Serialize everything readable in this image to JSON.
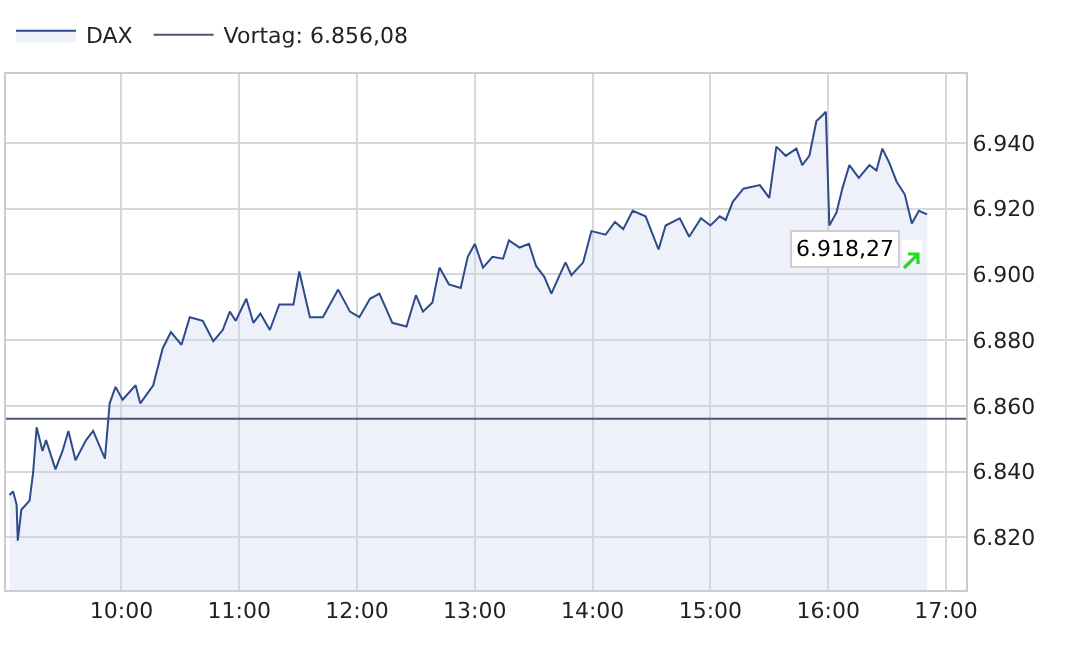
{
  "chart_data": {
    "type": "area",
    "x": [
      9.05,
      9.08,
      9.11,
      9.12,
      9.15,
      9.22,
      9.25,
      9.28,
      9.33,
      9.36,
      9.44,
      9.5,
      9.55,
      9.61,
      9.7,
      9.76,
      9.86,
      9.9,
      9.95,
      10.01,
      10.12,
      10.16,
      10.27,
      10.35,
      10.42,
      10.51,
      10.58,
      10.69,
      10.78,
      10.86,
      10.92,
      10.97,
      11.06,
      11.12,
      11.18,
      11.26,
      11.34,
      11.46,
      11.51,
      11.6,
      11.71,
      11.84,
      11.94,
      12.02,
      12.11,
      12.19,
      12.3,
      12.42,
      12.5,
      12.56,
      12.64,
      12.7,
      12.78,
      12.88,
      12.94,
      13.0,
      13.07,
      13.15,
      13.24,
      13.29,
      13.38,
      13.46,
      13.52,
      13.59,
      13.65,
      13.72,
      13.77,
      13.82,
      13.92,
      13.99,
      14.11,
      14.19,
      14.26,
      14.34,
      14.45,
      14.56,
      14.62,
      14.74,
      14.82,
      14.92,
      15.0,
      15.08,
      15.13,
      15.19,
      15.28,
      15.42,
      15.5,
      15.56,
      15.64,
      15.73,
      15.78,
      15.84,
      15.9,
      15.95,
      15.98,
      16.01,
      16.07,
      16.12,
      16.18,
      16.26,
      16.35,
      16.41,
      16.46,
      16.52,
      16.58,
      16.65,
      16.71,
      16.77,
      16.84
    ],
    "series": [
      {
        "name": "DAX",
        "color": "#2d4a8a",
        "values": [
          6832.9,
          6834,
          6830,
          6819,
          6828.4,
          6831.2,
          6839.6,
          6853.5,
          6846.3,
          6849.6,
          6840.7,
          6846.3,
          6852.4,
          6843.5,
          6849.6,
          6852.4,
          6844,
          6860.8,
          6865.8,
          6861.9,
          6866.3,
          6860.8,
          6866.3,
          6877.5,
          6882.5,
          6878.6,
          6887,
          6885.9,
          6879.7,
          6883.1,
          6888.7,
          6885.9,
          6892.6,
          6885.3,
          6888.1,
          6883.1,
          6890.9,
          6890.9,
          6900.9,
          6887,
          6887,
          6895.4,
          6888.7,
          6887,
          6892.6,
          6894.2,
          6885.3,
          6884.2,
          6893.7,
          6888.7,
          6891.5,
          6902.1,
          6897,
          6895.9,
          6905.4,
          6909.3,
          6902.1,
          6905.4,
          6904.8,
          6910.4,
          6908.2,
          6909.3,
          6902.6,
          6899.3,
          6894.2,
          6899.8,
          6903.7,
          6899.8,
          6903.7,
          6913.2,
          6912.1,
          6916,
          6913.8,
          6919.4,
          6917.7,
          6907.6,
          6914.9,
          6917.1,
          6911.5,
          6917.1,
          6914.9,
          6917.7,
          6916.6,
          6922.1,
          6926.1,
          6927.2,
          6923.3,
          6938.9,
          6936.1,
          6938.3,
          6933.3,
          6936.1,
          6946.7,
          6948.4,
          6949.5,
          6914.9,
          6918.8,
          6926.1,
          6933.3,
          6929.4,
          6933.3,
          6931.6,
          6938.3,
          6933.9,
          6928.3,
          6924.4,
          6915.5,
          6919.4,
          6918.27
        ]
      }
    ],
    "xlim": [
      9.02,
      17.17
    ],
    "xticks": [
      {
        "value": 10,
        "label": "10:00"
      },
      {
        "value": 11,
        "label": "11:00"
      },
      {
        "value": 12,
        "label": "12:00"
      },
      {
        "value": 13,
        "label": "13:00"
      },
      {
        "value": 14,
        "label": "14:00"
      },
      {
        "value": 15,
        "label": "15:00"
      },
      {
        "value": 16,
        "label": "16:00"
      },
      {
        "value": 17,
        "label": "17:00"
      }
    ],
    "ylim": [
      6804,
      6961
    ],
    "yticks": [
      {
        "value": 6820,
        "label": "6.820"
      },
      {
        "value": 6840,
        "label": "6.840"
      },
      {
        "value": 6860,
        "label": "6.860"
      },
      {
        "value": 6880,
        "label": "6.880"
      },
      {
        "value": 6900,
        "label": "6.900"
      },
      {
        "value": 6920,
        "label": "6.920"
      },
      {
        "value": 6940,
        "label": "6.940"
      }
    ],
    "ref_lines": [
      {
        "axis": "y",
        "value": 6856.08,
        "label": "Vortag: 6.856,08",
        "color": "#4b5573"
      }
    ],
    "annotations": [
      {
        "text": "6.918,27",
        "x": 16.84,
        "y": 6918.27
      }
    ],
    "grid": true,
    "legend": "top left",
    "marker": "none",
    "line_style": "solid"
  }
}
